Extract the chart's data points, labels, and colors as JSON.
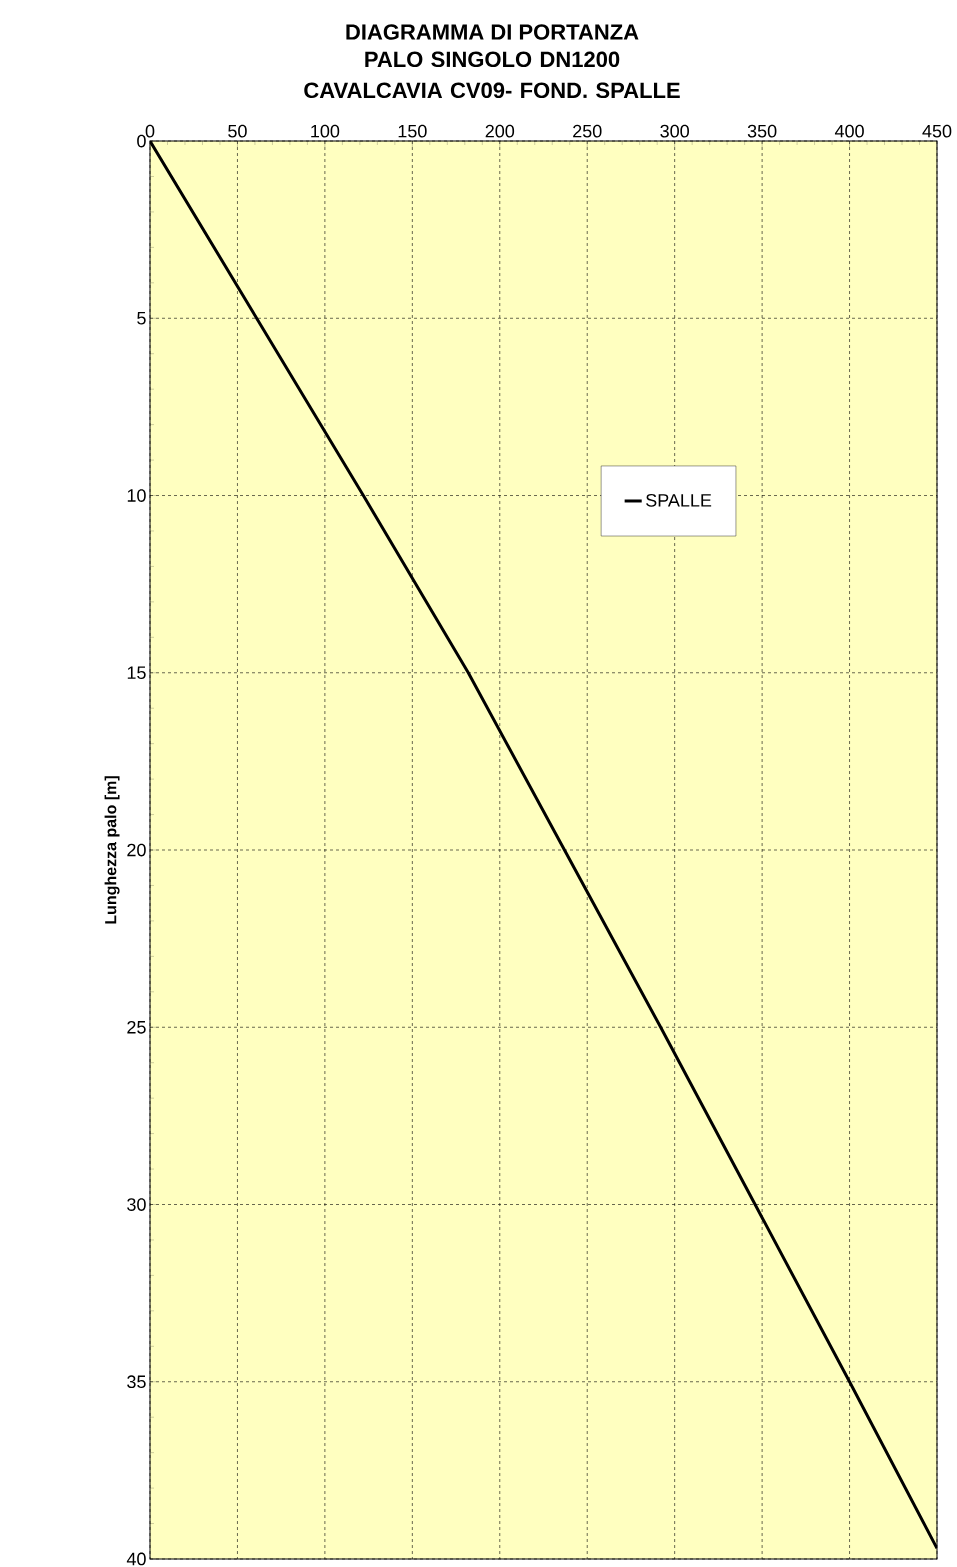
{
  "chart_data": {
    "type": "line",
    "title": "DIAGRAMMA DI PORTANZA",
    "subtitle": "PALO SINGOLO DN1200 CAVALCAVIA CV09- FOND. SPALLE",
    "ylabel": "Lunghezza palo [m]",
    "series": [
      {
        "name": "SPALLE",
        "color": "#000000",
        "x": [
          0,
          61,
          122,
          182,
          237,
          292,
          346,
          400,
          450
        ],
        "values": [
          0,
          5,
          10,
          15,
          20,
          25,
          30,
          35,
          39.7
        ]
      }
    ],
    "xlim": [
      0,
      450
    ],
    "xticks": [
      0,
      50,
      100,
      150,
      200,
      250,
      300,
      350,
      400,
      450
    ],
    "ylim": [
      40,
      0
    ],
    "yticks": [
      0,
      5,
      10,
      15,
      20,
      25,
      30,
      35,
      40
    ],
    "grid": true,
    "legend": "right",
    "marker": "none",
    "line_style": "solid"
  }
}
